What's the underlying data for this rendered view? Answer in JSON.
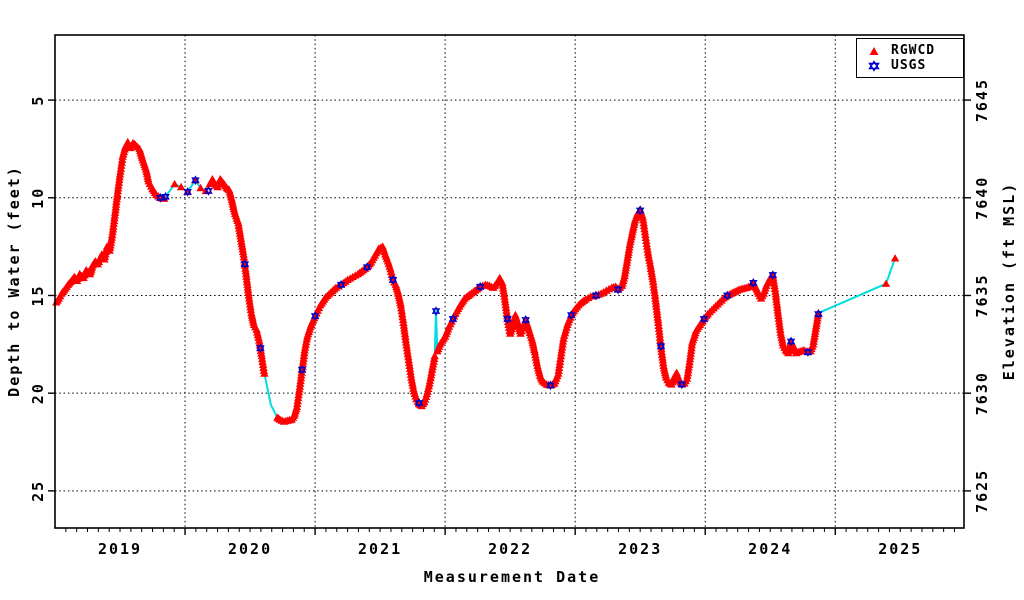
{
  "chart_data": {
    "type": "line+scatter",
    "xlabel": "Measurement Date",
    "ylabel_left": "Depth to Water (feet)",
    "ylabel_right": "Elevation (ft MSL)",
    "x_year_labels": [
      "2019",
      "2020",
      "2021",
      "2022",
      "2023",
      "2024",
      "2025"
    ],
    "x_grid_years": [
      2020,
      2021,
      2022,
      2023,
      2024,
      2025
    ],
    "x_range_years": [
      2019.0,
      2025.99
    ],
    "x_minor_ticks": "monthly",
    "y_ticks_left_depth_ft": [
      5,
      10,
      15,
      20,
      25
    ],
    "y_ticks_right_elevation_ft_msl": [
      7645,
      7640,
      7635,
      7630,
      7625
    ],
    "ylim_depth_ft": [
      1.67,
      26.9
    ],
    "elevation_equals": "7650 - depth",
    "grid": "dotted black, horizontal at depth ticks and vertical at year starts",
    "legend": {
      "position": "top-right",
      "items": [
        {
          "label": "RGWCD",
          "marker": "filled-triangle",
          "color": "#ff0000"
        },
        {
          "label": "USGS",
          "marker": "six-point-star",
          "color": "#0000cc"
        }
      ]
    },
    "colors": {
      "rgwcd_marker": "#ff0000",
      "usgs_marker": "#0000cc",
      "connecting_line": "#00dde0",
      "axis_and_text": "#000000"
    },
    "series_notes": "points are [decimal_year, depth_ft, code]; code 2 = dense red-triangle band segment, 1 = isolated red triangle, 0 = cyan line vertex only (no triangle)",
    "rgwcd_series": [
      [
        2019.01,
        15.35,
        2
      ],
      [
        2019.03,
        15.15,
        2
      ],
      [
        2019.05,
        14.9,
        2
      ],
      [
        2019.08,
        14.65,
        2
      ],
      [
        2019.1,
        14.45,
        2
      ],
      [
        2019.12,
        14.3,
        2
      ],
      [
        2019.15,
        14.05,
        2
      ],
      [
        2019.17,
        14.25,
        2
      ],
      [
        2019.19,
        13.9,
        2
      ],
      [
        2019.22,
        14.1,
        2
      ],
      [
        2019.24,
        13.7,
        2
      ],
      [
        2019.27,
        13.9,
        2
      ],
      [
        2019.29,
        13.45,
        2
      ],
      [
        2019.31,
        13.25,
        2
      ],
      [
        2019.33,
        13.4,
        2
      ],
      [
        2019.36,
        12.9,
        2
      ],
      [
        2019.38,
        13.15,
        2
      ],
      [
        2019.4,
        12.5,
        2
      ],
      [
        2019.42,
        12.7,
        2
      ],
      [
        2019.44,
        11.9,
        2
      ],
      [
        2019.46,
        10.9,
        2
      ],
      [
        2019.48,
        9.8,
        2
      ],
      [
        2019.5,
        8.8,
        2
      ],
      [
        2019.52,
        7.9,
        2
      ],
      [
        2019.54,
        7.4,
        2
      ],
      [
        2019.56,
        7.15,
        2
      ],
      [
        2019.58,
        7.45,
        2
      ],
      [
        2019.6,
        7.2,
        2
      ],
      [
        2019.62,
        7.3,
        2
      ],
      [
        2019.65,
        7.5,
        2
      ],
      [
        2019.67,
        7.95,
        2
      ],
      [
        2019.7,
        8.55,
        2
      ],
      [
        2019.72,
        9.15,
        2
      ],
      [
        2019.75,
        9.55,
        2
      ],
      [
        2019.78,
        9.85,
        2
      ],
      [
        2019.81,
        10.0,
        2
      ],
      [
        2019.84,
        10.05,
        2
      ],
      [
        2019.92,
        9.3,
        1
      ],
      [
        2019.97,
        9.45,
        1
      ],
      [
        2020.02,
        9.7,
        1
      ],
      [
        2020.08,
        9.1,
        1
      ],
      [
        2020.12,
        9.5,
        1
      ],
      [
        2020.16,
        9.65,
        1
      ],
      [
        2020.19,
        9.3,
        1
      ],
      [
        2020.21,
        9.05,
        2
      ],
      [
        2020.23,
        9.3,
        2
      ],
      [
        2020.25,
        9.45,
        2
      ],
      [
        2020.27,
        9.05,
        2
      ],
      [
        2020.3,
        9.3,
        2
      ],
      [
        2020.32,
        9.5,
        2
      ],
      [
        2020.34,
        9.6,
        2
      ],
      [
        2020.36,
        10.1,
        2
      ],
      [
        2020.38,
        10.7,
        2
      ],
      [
        2020.41,
        11.3,
        2
      ],
      [
        2020.43,
        12.1,
        2
      ],
      [
        2020.45,
        12.9,
        2
      ],
      [
        2020.47,
        13.9,
        2
      ],
      [
        2020.49,
        15.0,
        2
      ],
      [
        2020.51,
        15.9,
        2
      ],
      [
        2020.53,
        16.5,
        2
      ],
      [
        2020.55,
        16.75,
        2
      ],
      [
        2020.57,
        17.3,
        2
      ],
      [
        2020.59,
        18.1,
        2
      ],
      [
        2020.61,
        19.0,
        2
      ],
      [
        2020.66,
        20.6,
        0
      ],
      [
        2020.71,
        21.25,
        1
      ],
      [
        2020.73,
        21.35,
        2
      ],
      [
        2020.76,
        21.45,
        2
      ],
      [
        2020.79,
        21.4,
        2
      ],
      [
        2020.82,
        21.35,
        2
      ],
      [
        2020.84,
        21.15,
        2
      ],
      [
        2020.86,
        20.7,
        2
      ],
      [
        2020.88,
        19.8,
        2
      ],
      [
        2020.9,
        18.8,
        2
      ],
      [
        2020.92,
        17.8,
        2
      ],
      [
        2020.94,
        17.1,
        2
      ],
      [
        2020.97,
        16.5,
        2
      ],
      [
        2021.0,
        16.05,
        2
      ],
      [
        2021.04,
        15.5,
        2
      ],
      [
        2021.08,
        15.1,
        2
      ],
      [
        2021.12,
        14.85,
        2
      ],
      [
        2021.16,
        14.6,
        2
      ],
      [
        2021.2,
        14.45,
        2
      ],
      [
        2021.25,
        14.2,
        2
      ],
      [
        2021.29,
        14.05,
        2
      ],
      [
        2021.33,
        13.9,
        2
      ],
      [
        2021.37,
        13.7,
        2
      ],
      [
        2021.4,
        13.55,
        2
      ],
      [
        2021.43,
        13.3,
        2
      ],
      [
        2021.46,
        12.95,
        2
      ],
      [
        2021.49,
        12.6,
        2
      ],
      [
        2021.52,
        12.5,
        2
      ],
      [
        2021.54,
        12.9,
        2
      ],
      [
        2021.56,
        13.25,
        2
      ],
      [
        2021.58,
        13.65,
        2
      ],
      [
        2021.6,
        14.2,
        2
      ],
      [
        2021.62,
        14.45,
        2
      ],
      [
        2021.64,
        14.9,
        2
      ],
      [
        2021.66,
        15.5,
        2
      ],
      [
        2021.68,
        16.4,
        2
      ],
      [
        2021.7,
        17.4,
        2
      ],
      [
        2021.72,
        18.3,
        2
      ],
      [
        2021.74,
        19.2,
        2
      ],
      [
        2021.76,
        19.9,
        2
      ],
      [
        2021.78,
        20.3,
        2
      ],
      [
        2021.8,
        20.55,
        2
      ],
      [
        2021.82,
        20.65,
        2
      ],
      [
        2021.84,
        20.45,
        2
      ],
      [
        2021.86,
        20.05,
        2
      ],
      [
        2021.88,
        19.5,
        2
      ],
      [
        2021.9,
        18.8,
        2
      ],
      [
        2021.92,
        18.1,
        2
      ],
      [
        2021.93,
        15.8,
        0
      ],
      [
        2021.94,
        17.85,
        1
      ],
      [
        2021.96,
        17.5,
        2
      ],
      [
        2022.0,
        17.1,
        2
      ],
      [
        2022.03,
        16.6,
        2
      ],
      [
        2022.06,
        16.2,
        2
      ],
      [
        2022.09,
        15.8,
        2
      ],
      [
        2022.12,
        15.45,
        2
      ],
      [
        2022.15,
        15.15,
        2
      ],
      [
        2022.19,
        14.95,
        2
      ],
      [
        2022.23,
        14.75,
        2
      ],
      [
        2022.27,
        14.55,
        2
      ],
      [
        2022.31,
        14.45,
        2
      ],
      [
        2022.34,
        14.5,
        2
      ],
      [
        2022.37,
        14.6,
        2
      ],
      [
        2022.4,
        14.35,
        2
      ],
      [
        2022.42,
        14.1,
        2
      ],
      [
        2022.44,
        14.35,
        2
      ],
      [
        2022.46,
        15.2,
        2
      ],
      [
        2022.48,
        16.2,
        2
      ],
      [
        2022.5,
        16.95,
        2
      ],
      [
        2022.52,
        16.5,
        2
      ],
      [
        2022.54,
        16.0,
        2
      ],
      [
        2022.56,
        16.45,
        2
      ],
      [
        2022.58,
        16.95,
        2
      ],
      [
        2022.6,
        16.55,
        2
      ],
      [
        2022.62,
        16.25,
        2
      ],
      [
        2022.64,
        16.65,
        2
      ],
      [
        2022.67,
        17.3,
        2
      ],
      [
        2022.69,
        17.9,
        2
      ],
      [
        2022.71,
        18.6,
        2
      ],
      [
        2022.73,
        19.1,
        2
      ],
      [
        2022.75,
        19.4,
        2
      ],
      [
        2022.78,
        19.55,
        2
      ],
      [
        2022.81,
        19.6,
        2
      ],
      [
        2022.84,
        19.5,
        2
      ],
      [
        2022.87,
        19.0,
        2
      ],
      [
        2022.89,
        18.1,
        2
      ],
      [
        2022.91,
        17.2,
        2
      ],
      [
        2022.94,
        16.5,
        2
      ],
      [
        2022.97,
        16.0,
        2
      ],
      [
        2023.0,
        15.7,
        2
      ],
      [
        2023.04,
        15.4,
        2
      ],
      [
        2023.08,
        15.2,
        2
      ],
      [
        2023.12,
        15.05,
        2
      ],
      [
        2023.16,
        15.0,
        2
      ],
      [
        2023.2,
        14.9,
        2
      ],
      [
        2023.24,
        14.75,
        2
      ],
      [
        2023.28,
        14.6,
        2
      ],
      [
        2023.31,
        14.55,
        2
      ],
      [
        2023.33,
        14.7,
        2
      ],
      [
        2023.36,
        14.5,
        2
      ],
      [
        2023.38,
        14.0,
        2
      ],
      [
        2023.4,
        13.2,
        2
      ],
      [
        2023.42,
        12.4,
        2
      ],
      [
        2023.44,
        11.75,
        2
      ],
      [
        2023.46,
        11.15,
        2
      ],
      [
        2023.48,
        10.8,
        2
      ],
      [
        2023.5,
        10.6,
        2
      ],
      [
        2023.52,
        11.0,
        2
      ],
      [
        2023.54,
        11.9,
        2
      ],
      [
        2023.56,
        12.8,
        2
      ],
      [
        2023.58,
        13.5,
        2
      ],
      [
        2023.6,
        14.3,
        2
      ],
      [
        2023.62,
        15.3,
        2
      ],
      [
        2023.64,
        16.4,
        2
      ],
      [
        2023.66,
        17.6,
        2
      ],
      [
        2023.68,
        18.6,
        2
      ],
      [
        2023.7,
        19.2,
        2
      ],
      [
        2023.72,
        19.45,
        2
      ],
      [
        2023.74,
        19.55,
        2
      ],
      [
        2023.76,
        19.2,
        2
      ],
      [
        2023.78,
        18.95,
        2
      ],
      [
        2023.8,
        19.35,
        2
      ],
      [
        2023.82,
        19.55,
        2
      ],
      [
        2023.84,
        19.5,
        2
      ],
      [
        2023.86,
        19.25,
        2
      ],
      [
        2023.88,
        18.4,
        2
      ],
      [
        2023.9,
        17.4,
        2
      ],
      [
        2023.93,
        16.8,
        2
      ],
      [
        2023.96,
        16.5,
        2
      ],
      [
        2023.99,
        16.2,
        2
      ],
      [
        2024.02,
        15.95,
        2
      ],
      [
        2024.05,
        15.75,
        2
      ],
      [
        2024.08,
        15.55,
        2
      ],
      [
        2024.11,
        15.35,
        2
      ],
      [
        2024.14,
        15.15,
        2
      ],
      [
        2024.17,
        15.0,
        2
      ],
      [
        2024.2,
        14.9,
        2
      ],
      [
        2024.23,
        14.8,
        2
      ],
      [
        2024.26,
        14.7,
        2
      ],
      [
        2024.29,
        14.65,
        2
      ],
      [
        2024.32,
        14.6,
        2
      ],
      [
        2024.35,
        14.5,
        2
      ],
      [
        2024.37,
        14.35,
        2
      ],
      [
        2024.39,
        14.6,
        2
      ],
      [
        2024.41,
        14.9,
        2
      ],
      [
        2024.43,
        15.15,
        2
      ],
      [
        2024.45,
        14.9,
        2
      ],
      [
        2024.47,
        14.5,
        2
      ],
      [
        2024.5,
        14.1,
        2
      ],
      [
        2024.52,
        13.95,
        2
      ],
      [
        2024.54,
        14.8,
        2
      ],
      [
        2024.56,
        15.9,
        2
      ],
      [
        2024.58,
        16.9,
        2
      ],
      [
        2024.6,
        17.55,
        2
      ],
      [
        2024.62,
        17.8,
        2
      ],
      [
        2024.64,
        17.95,
        2
      ],
      [
        2024.66,
        17.35,
        2
      ],
      [
        2024.68,
        17.6,
        2
      ],
      [
        2024.7,
        17.95,
        2
      ],
      [
        2024.73,
        17.85,
        2
      ],
      [
        2024.76,
        17.8,
        2
      ],
      [
        2024.79,
        17.9,
        2
      ],
      [
        2024.81,
        17.85,
        2
      ],
      [
        2024.83,
        17.5,
        2
      ],
      [
        2024.85,
        16.7,
        2
      ],
      [
        2024.87,
        15.9,
        2
      ],
      [
        2025.39,
        14.4,
        1
      ],
      [
        2025.46,
        13.1,
        1
      ]
    ],
    "usgs_points": [
      [
        2019.81,
        10.0
      ],
      [
        2019.85,
        9.95
      ],
      [
        2020.02,
        9.7
      ],
      [
        2020.08,
        9.1
      ],
      [
        2020.18,
        9.65
      ],
      [
        2020.46,
        13.4
      ],
      [
        2020.58,
        17.7
      ],
      [
        2020.9,
        18.8
      ],
      [
        2021.0,
        16.05
      ],
      [
        2021.2,
        14.45
      ],
      [
        2021.4,
        13.55
      ],
      [
        2021.6,
        14.2
      ],
      [
        2021.8,
        20.5
      ],
      [
        2021.93,
        15.8
      ],
      [
        2022.06,
        16.2
      ],
      [
        2022.27,
        14.55
      ],
      [
        2022.48,
        16.2
      ],
      [
        2022.62,
        16.25
      ],
      [
        2022.81,
        19.6
      ],
      [
        2022.97,
        16.0
      ],
      [
        2023.16,
        15.0
      ],
      [
        2023.33,
        14.7
      ],
      [
        2023.5,
        10.65
      ],
      [
        2023.66,
        17.6
      ],
      [
        2023.82,
        19.55
      ],
      [
        2023.99,
        16.2
      ],
      [
        2024.17,
        15.0
      ],
      [
        2024.37,
        14.35
      ],
      [
        2024.52,
        13.95
      ],
      [
        2024.66,
        17.35
      ],
      [
        2024.79,
        17.9
      ],
      [
        2024.87,
        15.95
      ]
    ]
  }
}
